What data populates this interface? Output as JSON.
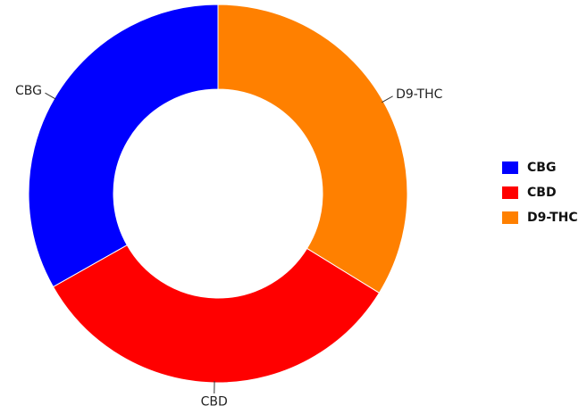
{
  "chart_data": {
    "type": "pie",
    "variant": "donut",
    "title": "",
    "categories": [
      "D9-THC",
      "CBD",
      "CBG"
    ],
    "values": [
      33.8,
      33.0,
      33.2
    ],
    "colors": [
      "#ff8000",
      "#ff0000",
      "#0000ff"
    ],
    "slice_labels": {
      "outside": true
    },
    "legend": {
      "position": "right",
      "entries": [
        {
          "label": "CBG",
          "color": "#0000ff"
        },
        {
          "label": "CBD",
          "color": "#ff0000"
        },
        {
          "label": "D9-THC",
          "color": "#ff8000"
        }
      ]
    }
  }
}
